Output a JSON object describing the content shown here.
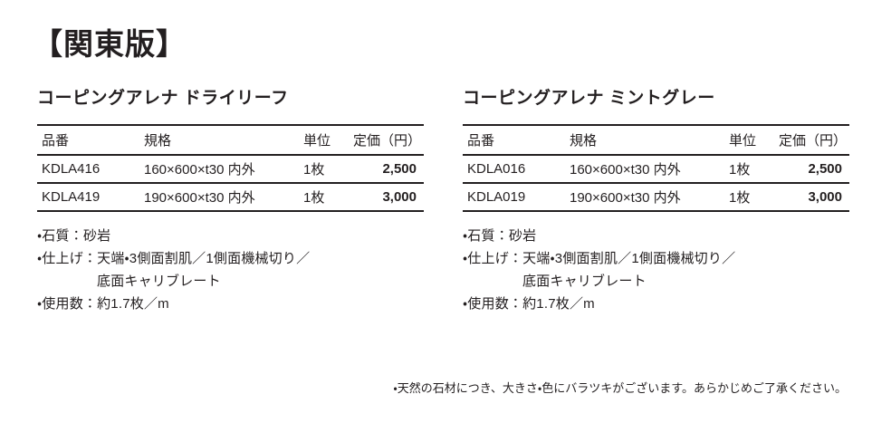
{
  "page": {
    "region_title": "【関東版】",
    "disclaimer": "・天然の石材につき、大きさ・色にバラツキがございます。あらかじめご了承ください。"
  },
  "tables": [
    {
      "title": "コーピングアレナ ドライリーフ",
      "headers": [
        "品番",
        "規格",
        "単位",
        "定価（円）"
      ],
      "rows": [
        {
          "code": "KDLA416",
          "spec": "160×600×t30 内外",
          "unit": "1枚",
          "price": "2,500"
        },
        {
          "code": "KDLA419",
          "spec": "190×600×t30 内外",
          "unit": "1枚",
          "price": "3,000"
        }
      ],
      "notes": [
        "・石質：砂岩",
        "・仕上げ：天端・3側面割肌／1側面機械切り／",
        "底面キャリブレート",
        "・使用数：約1.7枚／m"
      ]
    },
    {
      "title": "コーピングアレナ ミントグレー",
      "headers": [
        "品番",
        "規格",
        "単位",
        "定価（円）"
      ],
      "rows": [
        {
          "code": "KDLA016",
          "spec": "160×600×t30 内外",
          "unit": "1枚",
          "price": "2,500"
        },
        {
          "code": "KDLA019",
          "spec": "190×600×t30 内外",
          "unit": "1枚",
          "price": "3,000"
        }
      ],
      "notes": [
        "・石質：砂岩",
        "・仕上げ：天端・3側面割肌／1側面機械切り／",
        "底面キャリブレート",
        "・使用数：約1.7枚／m"
      ]
    }
  ],
  "colors": {
    "text": "#231f20",
    "rule": "#231f20",
    "background": "#ffffff"
  }
}
